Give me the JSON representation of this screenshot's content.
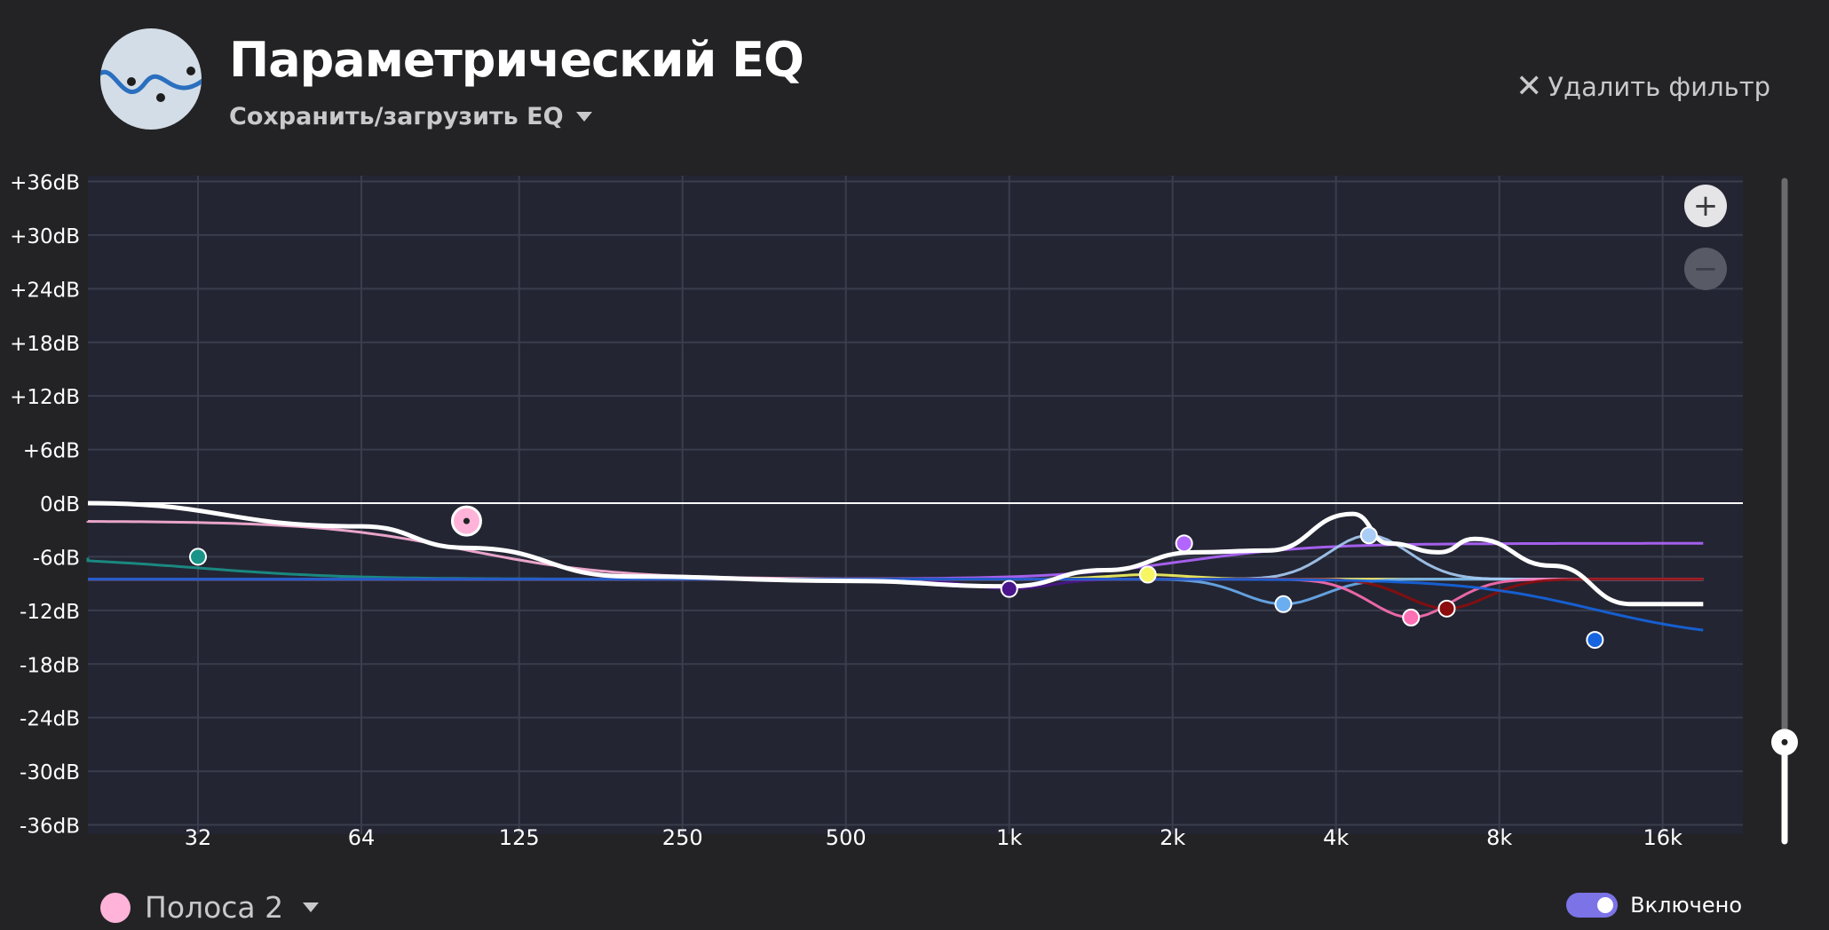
{
  "header": {
    "title": "Параметрический EQ",
    "save_load_label": "Сохранить/загрузить EQ",
    "delete_filter_label": "Удалить фильтр"
  },
  "graph": {
    "y_ticks": [
      "+36dB",
      "+30dB",
      "+24dB",
      "+18dB",
      "+12dB",
      "+6dB",
      "0dB",
      "-6dB",
      "-12dB",
      "-18dB",
      "-24dB",
      "-30dB",
      "-36dB"
    ],
    "x_ticks": [
      "32",
      "64",
      "125",
      "250",
      "500",
      "1k",
      "2k",
      "4k",
      "8k",
      "16k"
    ],
    "zoom_in_label": "+",
    "zoom_out_label": "−",
    "slider_level": 0.15,
    "colors": {
      "background": "#232533",
      "grid": "#3a3d4c",
      "zero_line": "#ffffff",
      "total_curve": "#ffffff"
    },
    "bands": [
      {
        "color": "#1a9488",
        "freq": 32,
        "gain": -6
      },
      {
        "color": "#ffb3d9",
        "freq": 100,
        "gain": -2,
        "selected": true
      },
      {
        "color": "#4a148c",
        "freq": 1000,
        "gain": -9.6
      },
      {
        "color": "#f6f663",
        "freq": 1800,
        "gain": -8
      },
      {
        "color": "#b266ff",
        "freq": 2100,
        "gain": -4.5
      },
      {
        "color": "#6aaef0",
        "freq": 3200,
        "gain": -11.3
      },
      {
        "color": "#a9cdf5",
        "freq": 4600,
        "gain": -3.6
      },
      {
        "color": "#ff6fb3",
        "freq": 5500,
        "gain": -12.8
      },
      {
        "color": "#8b0d0d",
        "freq": 6400,
        "gain": -11.8
      },
      {
        "color": "#1565e0",
        "freq": 12000,
        "gain": -15.3
      }
    ]
  },
  "footer": {
    "band_label": "Полоса 2",
    "band_color": "#ffb3d9",
    "enabled_label": "Включено",
    "enabled": true
  }
}
